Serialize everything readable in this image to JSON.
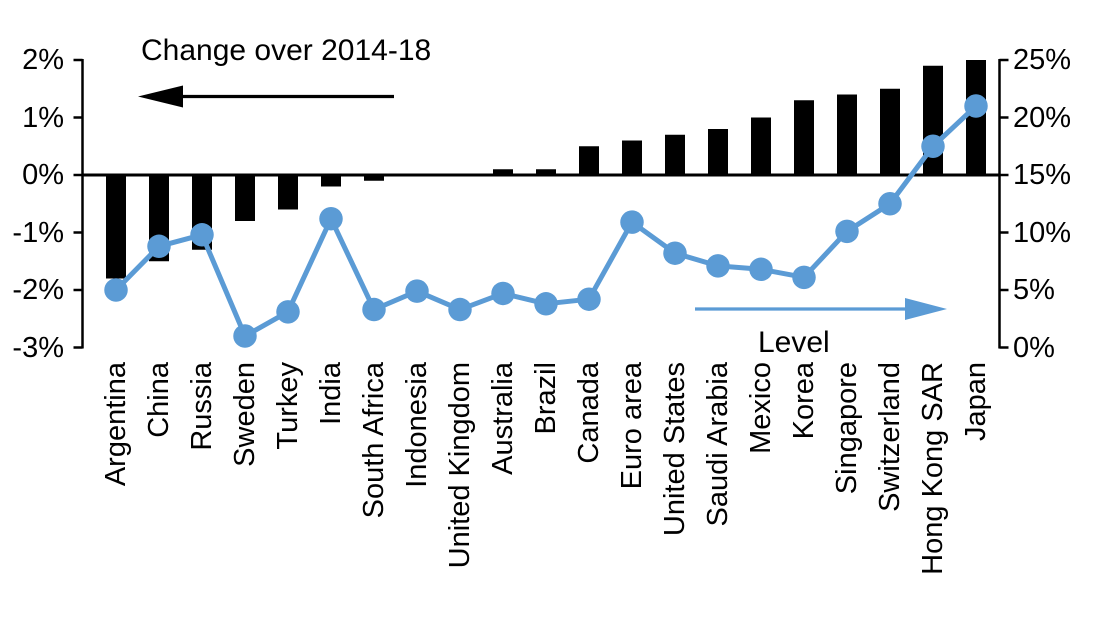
{
  "chart_data": {
    "type": "combo_bar_line",
    "title": "Change over 2014-18",
    "categories": [
      "Argentina",
      "China",
      "Russia",
      "Sweden",
      "Turkey",
      "India",
      "South Africa",
      "Indonesia",
      "United Kingdom",
      "Australia",
      "Brazil",
      "Canada",
      "Euro area",
      "United States",
      "Saudi Arabia",
      "Mexico",
      "Korea",
      "Singapore",
      "Switzerland",
      "Hong Kong SAR",
      "Japan"
    ],
    "series": [
      {
        "name": "Change over 2014-18",
        "type": "bar",
        "axis": "left",
        "color": "#000000",
        "values": [
          -1.8,
          -1.5,
          -1.3,
          -0.8,
          -0.6,
          -0.2,
          -0.1,
          0.0,
          0.0,
          0.1,
          0.1,
          0.5,
          0.6,
          0.7,
          0.8,
          1.0,
          1.3,
          1.4,
          1.5,
          1.9,
          2.0
        ]
      },
      {
        "name": "Level",
        "type": "line",
        "axis": "right",
        "color": "#5B9BD5",
        "values": [
          5.0,
          8.8,
          9.8,
          1.0,
          3.1,
          11.2,
          3.3,
          4.9,
          3.3,
          4.7,
          3.8,
          4.2,
          10.9,
          8.2,
          7.1,
          6.8,
          6.1,
          10.1,
          12.5,
          17.5,
          21.0
        ]
      }
    ],
    "left_axis": {
      "tick_labels": [
        "2%",
        "1%",
        "0%",
        "-1%",
        "-2%",
        "-3%"
      ],
      "tick_values": [
        2,
        1,
        0,
        -1,
        -2,
        -3
      ],
      "min": -3,
      "max": 2
    },
    "right_axis": {
      "tick_labels": [
        "25%",
        "20%",
        "15%",
        "10%",
        "5%",
        "0%"
      ],
      "tick_values": [
        25,
        20,
        15,
        10,
        5,
        0
      ],
      "min": 0,
      "max": 25
    },
    "annotations": [
      {
        "text": "Change over 2014-18",
        "arrow": "left",
        "color": "#000000"
      },
      {
        "text": "Level",
        "arrow": "right",
        "color": "#5B9BD5"
      }
    ],
    "grid": false,
    "legend_position": "none"
  },
  "colors": {
    "bar_series": "#000000",
    "line_series": "#5B9BD5",
    "background": "#FFFFFF",
    "text": "#000000"
  }
}
